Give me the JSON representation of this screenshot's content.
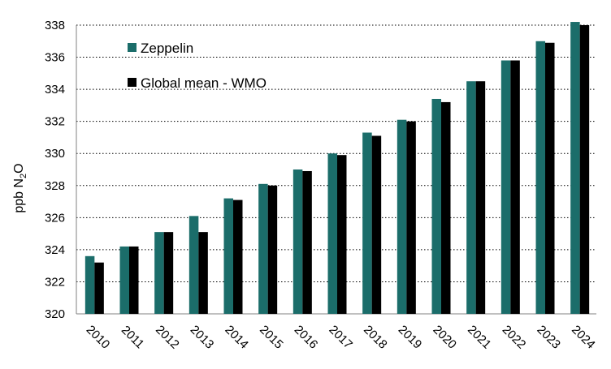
{
  "chart_data": {
    "type": "bar",
    "ylabel": "ppb N",
    "ylabel_subscript": "2",
    "ylabel_suffix": "O",
    "ylim": [
      320,
      338
    ],
    "ytick_step": 2,
    "grid": "horizontal dotted",
    "legend_position": "top-left",
    "categories": [
      "2010",
      "2011",
      "2012",
      "2013",
      "2014",
      "2015",
      "2016",
      "2017",
      "2018",
      "2019",
      "2020",
      "2021",
      "2022",
      "2023",
      "2024"
    ],
    "series": [
      {
        "name": "Zeppelin",
        "color": "#1b6d6a",
        "values": [
          323.6,
          324.2,
          325.1,
          326.1,
          327.2,
          328.1,
          329.0,
          330.0,
          331.3,
          332.1,
          333.4,
          334.5,
          335.8,
          337.0,
          338.2
        ]
      },
      {
        "name": "Global mean - WMO",
        "color": "#000000",
        "values": [
          323.2,
          324.2,
          325.1,
          325.1,
          327.1,
          328.0,
          328.9,
          329.9,
          331.1,
          332.0,
          333.2,
          334.5,
          335.8,
          336.9,
          338.0
        ]
      }
    ]
  }
}
